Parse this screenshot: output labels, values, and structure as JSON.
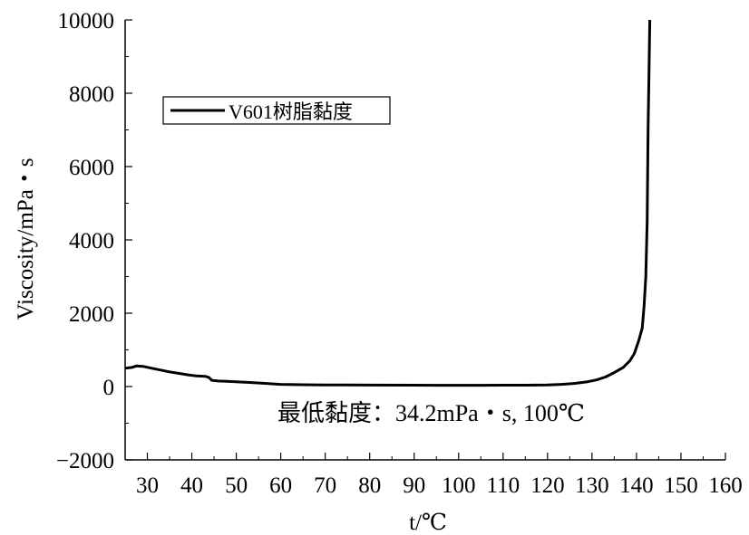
{
  "chart_data": {
    "type": "line",
    "title": "",
    "xlabel": "t/℃",
    "ylabel": "Viscosity/mPa・s",
    "xlim": [
      25,
      160
    ],
    "ylim": [
      -2000,
      10000
    ],
    "x_ticks": [
      30,
      40,
      50,
      60,
      70,
      80,
      90,
      100,
      110,
      120,
      130,
      140,
      150,
      160
    ],
    "y_ticks": [
      -2000,
      0,
      2000,
      4000,
      6000,
      8000,
      10000
    ],
    "x_tick_labels": [
      "30",
      "40",
      "50",
      "60",
      "70",
      "80",
      "90",
      "100",
      "110",
      "120",
      "130",
      "140",
      "150",
      "160"
    ],
    "y_tick_labels": [
      "−2000",
      "0",
      "2000",
      "4000",
      "6000",
      "8000",
      "10000"
    ],
    "grid": false,
    "legend": {
      "placement": "top-left",
      "entries": [
        "V601树脂黏度"
      ]
    },
    "annotation": "最低黏度：34.2mPa・s, 100℃",
    "series": [
      {
        "name": "V601树脂黏度",
        "color": "#000000",
        "points": [
          [
            25,
            500
          ],
          [
            26.5,
            520
          ],
          [
            27.5,
            560
          ],
          [
            29,
            550
          ],
          [
            31,
            500
          ],
          [
            33,
            450
          ],
          [
            35,
            400
          ],
          [
            37,
            360
          ],
          [
            39,
            320
          ],
          [
            41,
            290
          ],
          [
            43,
            280
          ],
          [
            43.8,
            250
          ],
          [
            44.5,
            170
          ],
          [
            46,
            150
          ],
          [
            48,
            140
          ],
          [
            50,
            130
          ],
          [
            53,
            110
          ],
          [
            56,
            90
          ],
          [
            60,
            60
          ],
          [
            65,
            50
          ],
          [
            70,
            45
          ],
          [
            80,
            40
          ],
          [
            90,
            36
          ],
          [
            95,
            35
          ],
          [
            100,
            34.2
          ],
          [
            105,
            35
          ],
          [
            110,
            36
          ],
          [
            115,
            38
          ],
          [
            120,
            45
          ],
          [
            123,
            60
          ],
          [
            126,
            85
          ],
          [
            129,
            130
          ],
          [
            131,
            180
          ],
          [
            133,
            260
          ],
          [
            135,
            380
          ],
          [
            137,
            520
          ],
          [
            138.5,
            700
          ],
          [
            139.5,
            900
          ],
          [
            140.5,
            1250
          ],
          [
            141.3,
            1600
          ],
          [
            141.7,
            2200
          ],
          [
            142.1,
            3000
          ],
          [
            142.4,
            4500
          ],
          [
            142.6,
            7000
          ],
          [
            142.8,
            8500
          ],
          [
            143,
            10000
          ]
        ]
      }
    ]
  }
}
